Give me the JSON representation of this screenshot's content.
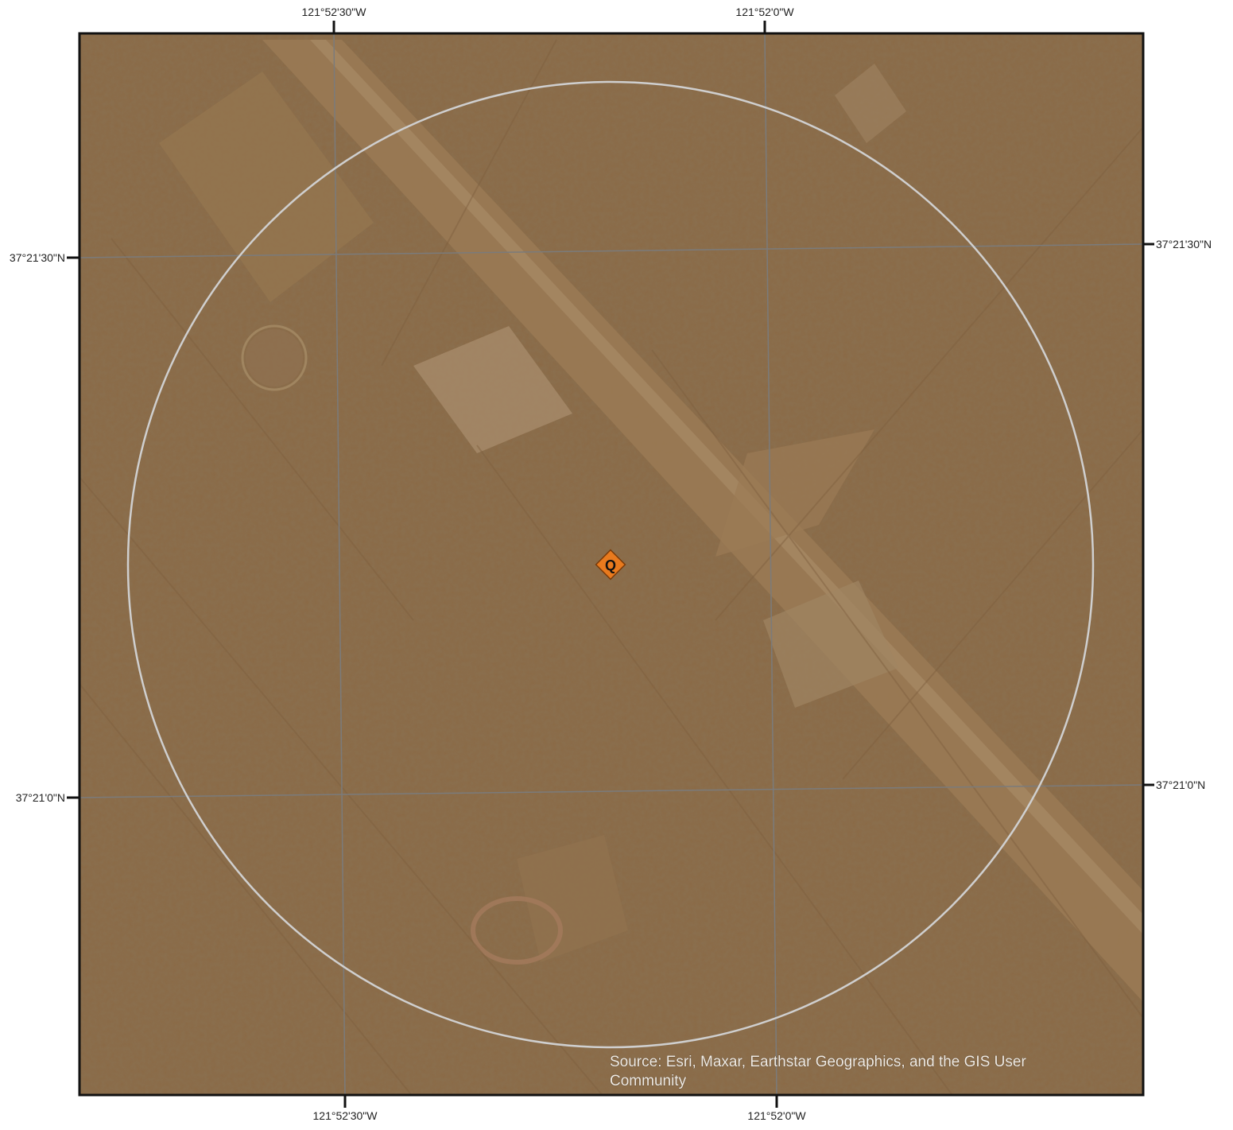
{
  "map": {
    "grid_labels": {
      "top": [
        "121°52'30\"W",
        "121°52'0\"W"
      ],
      "bottom": [
        "121°52'30\"W",
        "121°52'0\"W"
      ],
      "left": [
        "37°21'30\"N",
        "37°21'0\"N"
      ],
      "right": [
        "37°21'30\"N",
        "37°21'0\"N"
      ]
    },
    "marker": {
      "label": "Q",
      "icon": "diamond-marker-icon",
      "color": "#e87a1e"
    },
    "buffer_ring": {
      "stroke_color": "#cfcfcf"
    },
    "attribution": {
      "line1": "Source: Esri, Maxar, Earthstar Geographics, and the GIS User",
      "line2": "Community"
    },
    "colors": {
      "imagery_tint": "#8b6a46",
      "frame": "#111111",
      "graticule": "#7b7b7b",
      "label_text": "#222222"
    }
  }
}
